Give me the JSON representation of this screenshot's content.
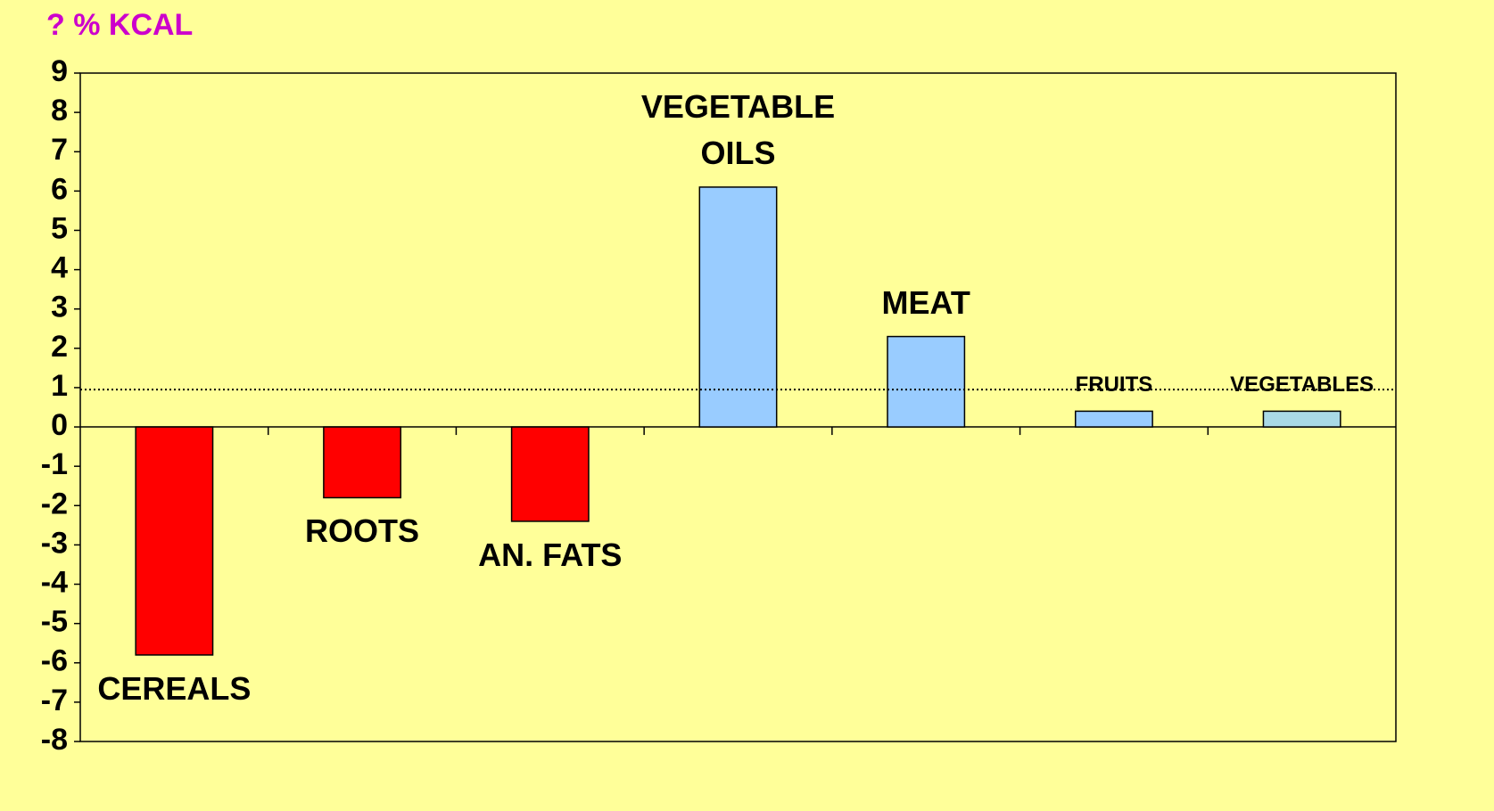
{
  "chart_data": {
    "type": "bar",
    "title": "? % KCAL",
    "categories": [
      "CEREALS",
      "ROOTS",
      "AN. FATS",
      "VEGETABLE OILS",
      "MEAT",
      "FRUITS",
      "VEGETABLES"
    ],
    "values": [
      -5.8,
      -1.8,
      -2.4,
      6.1,
      2.3,
      0.4,
      0.4
    ],
    "colors": [
      "#ff0000",
      "#ff0000",
      "#ff0000",
      "#99ccff",
      "#99ccff",
      "#99ccff",
      "#a9d9e6"
    ],
    "ylim": [
      -8,
      9
    ],
    "yticks": [
      -8,
      -7,
      -6,
      -5,
      -4,
      -3,
      -2,
      -1,
      0,
      1,
      2,
      3,
      4,
      5,
      6,
      7,
      8,
      9
    ],
    "reference_line": 0.95
  }
}
